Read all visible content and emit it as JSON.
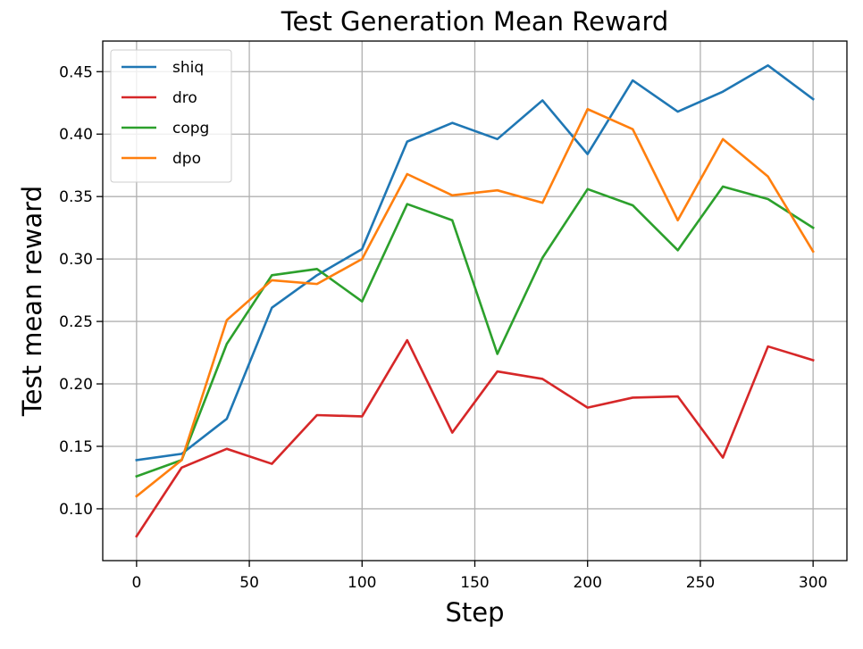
{
  "chart_data": {
    "type": "line",
    "title": "Test Generation Mean Reward",
    "xlabel": "Step",
    "ylabel": "Test mean reward",
    "x": [
      0,
      20,
      40,
      60,
      80,
      100,
      120,
      140,
      160,
      180,
      200,
      220,
      240,
      260,
      280,
      300
    ],
    "xlim": [
      -15,
      315
    ],
    "ylim": [
      0.0585,
      0.4745
    ],
    "xticks": [
      0,
      50,
      100,
      150,
      200,
      250,
      300
    ],
    "xtick_labels": [
      "0",
      "50",
      "100",
      "150",
      "200",
      "250",
      "300"
    ],
    "yticks": [
      0.1,
      0.15,
      0.2,
      0.25,
      0.3,
      0.35,
      0.4,
      0.45
    ],
    "ytick_labels": [
      "0.10",
      "0.15",
      "0.20",
      "0.25",
      "0.30",
      "0.35",
      "0.40",
      "0.45"
    ],
    "grid": true,
    "legend_position": "upper-left",
    "series": [
      {
        "name": "shiq",
        "color": "#1f77b4",
        "values": [
          0.139,
          0.144,
          0.172,
          0.261,
          0.287,
          0.308,
          0.394,
          0.409,
          0.396,
          0.427,
          0.384,
          0.443,
          0.418,
          0.434,
          0.455,
          0.428
        ]
      },
      {
        "name": "dro",
        "color": "#d62728",
        "values": [
          0.078,
          0.133,
          0.148,
          0.136,
          0.175,
          0.174,
          0.235,
          0.161,
          0.21,
          0.204,
          0.181,
          0.189,
          0.19,
          0.141,
          0.23,
          0.219
        ]
      },
      {
        "name": "copg",
        "color": "#2ca02c",
        "values": [
          0.126,
          0.139,
          0.232,
          0.287,
          0.292,
          0.266,
          0.344,
          0.331,
          0.224,
          0.301,
          0.356,
          0.343,
          0.307,
          0.358,
          0.348,
          0.325
        ]
      },
      {
        "name": "dpo",
        "color": "#ff7f0e",
        "values": [
          0.11,
          0.139,
          0.251,
          0.283,
          0.28,
          0.3,
          0.368,
          0.351,
          0.355,
          0.345,
          0.42,
          0.404,
          0.331,
          0.396,
          0.366,
          0.306
        ]
      }
    ]
  }
}
